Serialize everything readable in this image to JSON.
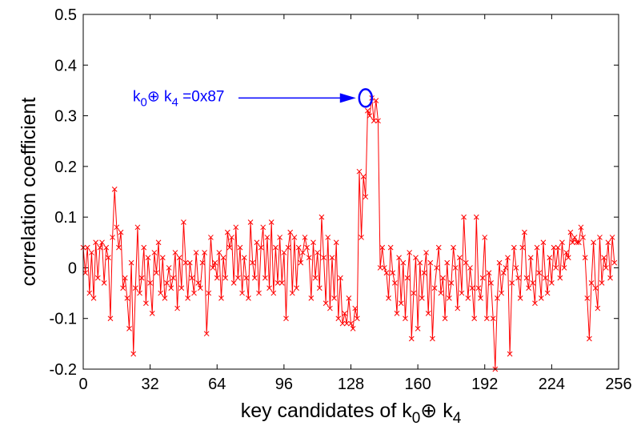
{
  "chart_data": {
    "type": "line",
    "title": "",
    "xlabel_parts": [
      "key candidates of k",
      "0",
      "⊕ k",
      "4"
    ],
    "ylabel": "correlation coefficient",
    "xlim": [
      0,
      256
    ],
    "ylim": [
      -0.2,
      0.5
    ],
    "x_ticks": [
      "0",
      "32",
      "64",
      "96",
      "128",
      "160",
      "192",
      "224",
      "256"
    ],
    "y_ticks": [
      "-0.2",
      "-0.1",
      "0",
      "0.1",
      "0.2",
      "0.3",
      "0.4",
      "0.5"
    ],
    "grid": false,
    "marker": "x",
    "line_color": "#ff0000",
    "annotation": {
      "text_parts": [
        "k",
        "0",
        "⊕ k",
        "4",
        " =0x87"
      ],
      "x": 135,
      "y": 0.335,
      "color": "#0000ff"
    },
    "series": [
      {
        "values": [
          0.04,
          -0.01,
          0.04,
          -0.05,
          0.03,
          -0.06,
          0.05,
          -0.02,
          0.04,
          0.05,
          -0.03,
          0.04,
          0.02,
          -0.1,
          0.06,
          0.155,
          0.08,
          0.04,
          0.07,
          -0.04,
          -0.02,
          -0.06,
          -0.12,
          0.01,
          -0.17,
          -0.04,
          0.08,
          -0.05,
          -0.02,
          0.04,
          -0.07,
          0.02,
          -0.03,
          -0.09,
          0.03,
          -0.01,
          0.05,
          -0.05,
          0.02,
          -0.06,
          -0.03,
          0.0,
          -0.04,
          -0.02,
          0.03,
          -0.08,
          0.02,
          -0.04,
          0.09,
          0.01,
          -0.06,
          0.01,
          -0.02,
          -0.05,
          0.03,
          -0.03,
          -0.04,
          0.01,
          0.03,
          -0.13,
          -0.05,
          0.06,
          0.0,
          0.01,
          -0.02,
          0.03,
          -0.06,
          0.02,
          -0.02,
          0.07,
          0.04,
          0.06,
          -0.03,
          0.08,
          -0.02,
          0.04,
          -0.05,
          0.02,
          -0.02,
          -0.06,
          0.09,
          0.01,
          -0.02,
          0.05,
          -0.05,
          0.04,
          0.08,
          -0.02,
          0.06,
          -0.04,
          0.09,
          -0.05,
          0.04,
          -0.03,
          0.06,
          -0.03,
          0.03,
          -0.1,
          0.04,
          0.07,
          -0.05,
          0.06,
          -0.04,
          0.04,
          0.01,
          0.03,
          0.06,
          0.04,
          0.02,
          -0.06,
          0.05,
          -0.02,
          0.03,
          -0.04,
          0.1,
          0.02,
          -0.07,
          0.06,
          -0.08,
          0.02,
          -0.06,
          0.05,
          -0.1,
          -0.02,
          -0.11,
          -0.09,
          -0.11,
          -0.06,
          -0.11,
          -0.12,
          -0.08,
          -0.1,
          0.19,
          0.06,
          0.18,
          0.14,
          0.31,
          0.3,
          0.335,
          0.29,
          0.33,
          0.29,
          0.0,
          0.04,
          0.0,
          -0.01,
          -0.06,
          0.04,
          -0.01,
          -0.03,
          -0.09,
          0.02,
          -0.07,
          0.01,
          -0.1,
          -0.02,
          0.03,
          -0.14,
          -0.05,
          0.02,
          -0.12,
          0.01,
          -0.06,
          -0.01,
          0.03,
          -0.09,
          0.01,
          -0.14,
          -0.04,
          0.0,
          0.04,
          -0.05,
          -0.02,
          -0.1,
          0.01,
          -0.06,
          -0.03,
          0.04,
          0.0,
          -0.08,
          0.02,
          -0.05,
          0.1,
          0.01,
          -0.06,
          0.0,
          -0.04,
          -0.1,
          0.1,
          -0.04,
          -0.06,
          -0.02,
          0.06,
          -0.1,
          -0.01,
          -0.03,
          -0.1,
          -0.2,
          -0.06,
          0.01,
          -0.05,
          -0.01,
          0.0,
          0.02,
          -0.17,
          -0.03,
          0.04,
          0.0,
          -0.02,
          -0.06,
          0.04,
          0.07,
          -0.02,
          -0.04,
          0.02,
          -0.03,
          -0.07,
          0.04,
          -0.01,
          -0.06,
          0.05,
          -0.02,
          -0.05,
          0.02,
          -0.03,
          0.04,
          0.0,
          0.04,
          -0.02,
          0.05,
          0.0,
          0.03,
          0.02,
          0.07,
          0.05,
          0.06,
          0.05,
          0.05,
          0.08,
          0.06,
          0.02,
          -0.06,
          -0.14,
          -0.03,
          0.05,
          -0.04,
          -0.08,
          0.06,
          -0.03,
          0.02,
          0.0,
          0.05,
          -0.02,
          0.06,
          0.01
        ]
      }
    ]
  }
}
